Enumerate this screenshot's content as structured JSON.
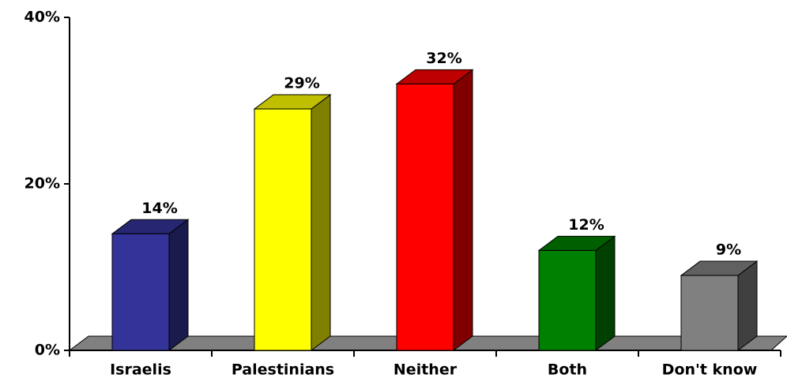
{
  "chart_data": {
    "type": "bar3d",
    "categories": [
      "Israelis",
      "Palestinians",
      "Neither",
      "Both",
      "Don't know"
    ],
    "values": [
      14,
      29,
      32,
      12,
      9
    ],
    "value_labels": [
      "14%",
      "29%",
      "32%",
      "12%",
      "9%"
    ],
    "colors": [
      "#333399",
      "#ffff00",
      "#ff0000",
      "#008000",
      "#808080"
    ],
    "ylim": [
      0,
      40
    ],
    "yticks": [
      {
        "value": 0,
        "label": "0%"
      },
      {
        "value": 20,
        "label": "20%"
      },
      {
        "value": 40,
        "label": "40%"
      }
    ]
  }
}
